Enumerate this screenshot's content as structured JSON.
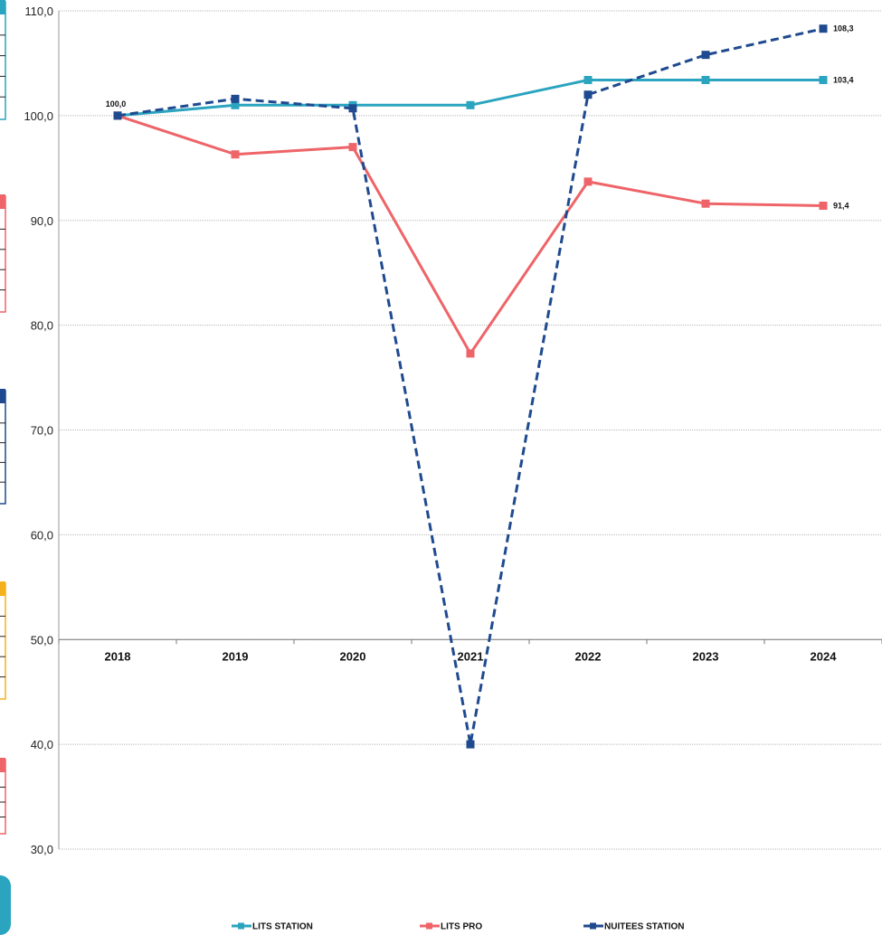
{
  "chart_data": {
    "type": "line",
    "categories": [
      "2018",
      "2019",
      "2020",
      "2021",
      "2022",
      "2023",
      "2024"
    ],
    "ylim": [
      30,
      110
    ],
    "yticks": [
      "30,0",
      "40,0",
      "50,0",
      "60,0",
      "70,0",
      "80,0",
      "90,0",
      "100,0",
      "110,0"
    ],
    "x_axis_crosses_at": 50,
    "grid": true,
    "legend_position": "bottom",
    "series": [
      {
        "name": "LITS STATION",
        "color": "#2aa4bf",
        "dash": false,
        "values": [
          100.0,
          101.0,
          101.0,
          101.0,
          103.4,
          103.4,
          103.4
        ]
      },
      {
        "name": "LITS PRO",
        "color": "#ee6468",
        "dash": false,
        "values": [
          100.0,
          96.3,
          97.0,
          77.3,
          93.7,
          91.6,
          91.4
        ]
      },
      {
        "name": "NUITEES STATION",
        "color": "#1f4a8f",
        "dash": true,
        "values": [
          100.0,
          101.6,
          100.7,
          40.0,
          102.0,
          105.8,
          108.3
        ]
      }
    ],
    "data_labels": [
      {
        "text": "100,0",
        "series": 2,
        "index": 0,
        "anchor": "above-left"
      },
      {
        "text": "103,4",
        "series": 0,
        "index": 6,
        "anchor": "right"
      },
      {
        "text": "108,3",
        "series": 2,
        "index": 6,
        "anchor": "right"
      },
      {
        "text": "91,4",
        "series": 1,
        "index": 6,
        "anchor": "right"
      }
    ]
  },
  "side_tabs": [
    {
      "color": "#2aa4bf"
    },
    {
      "color": "#ee6468"
    },
    {
      "color": "#1f4a8f"
    },
    {
      "color": "#f5b11c"
    },
    {
      "color": "#ee6468"
    },
    {
      "color": "#2aa4bf"
    }
  ]
}
